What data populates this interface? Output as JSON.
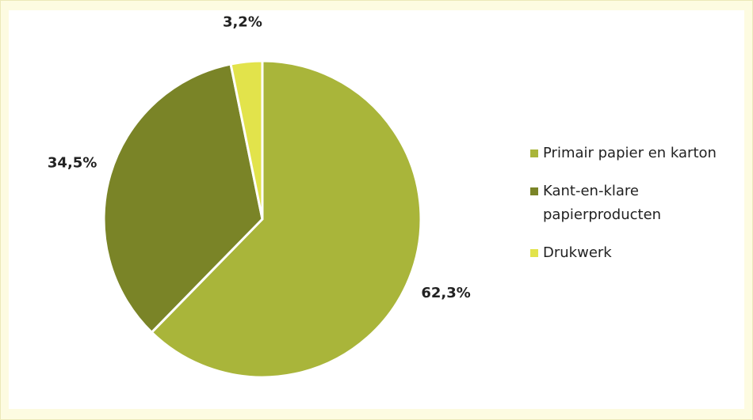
{
  "chart_data": {
    "type": "pie",
    "categories": [
      "Primair papier en karton",
      "Kant-en-klare papierproducten",
      "Drukwerk"
    ],
    "values": [
      62.3,
      34.5,
      3.2
    ],
    "value_labels": [
      "62,3%",
      "34,5%",
      "3,2%"
    ],
    "colors": [
      "#a9b53a",
      "#7a8427",
      "#e2e34b"
    ],
    "legend": "right"
  }
}
